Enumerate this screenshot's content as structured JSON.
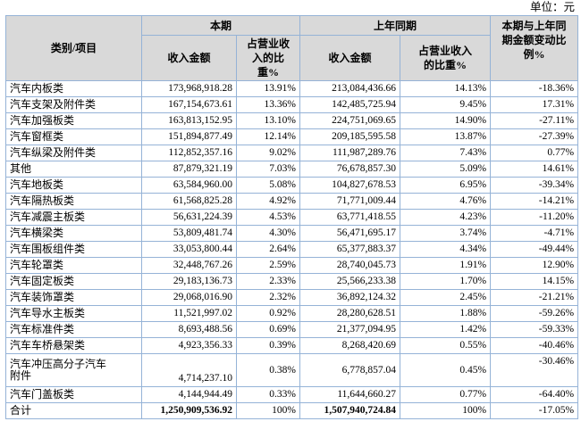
{
  "unit_label": "单位：元",
  "colors": {
    "border": "#95b3d7",
    "header_bg": "#d9d9d9"
  },
  "table": {
    "headers": {
      "category": "类别/项目",
      "current_period": "本期",
      "prior_period": "上年同期",
      "change": "本期与上年同\n期金额变动比\n例%",
      "current_revenue": "收入金额",
      "current_pct": "占营业收\n入的比\n重%",
      "prior_revenue": "收入金额",
      "prior_pct": "占营业收入\n的比重%"
    },
    "rows": [
      {
        "category": "汽车内板类",
        "cur_amount": "173,968,918.28",
        "cur_pct": "13.91%",
        "prior_amount": "213,084,436.66",
        "prior_pct": "14.13%",
        "change": "-18.36%"
      },
      {
        "category": "汽车支架及附件类",
        "cur_amount": "167,154,673.61",
        "cur_pct": "13.36%",
        "prior_amount": "142,485,725.94",
        "prior_pct": "9.45%",
        "change": "17.31%"
      },
      {
        "category": "汽车加强板类",
        "cur_amount": "163,813,152.95",
        "cur_pct": "13.10%",
        "prior_amount": "224,751,069.65",
        "prior_pct": "14.90%",
        "change": "-27.11%"
      },
      {
        "category": "汽车窗框类",
        "cur_amount": "151,894,877.49",
        "cur_pct": "12.14%",
        "prior_amount": "209,185,595.58",
        "prior_pct": "13.87%",
        "change": "-27.39%"
      },
      {
        "category": "汽车纵梁及附件类",
        "cur_amount": "112,852,357.16",
        "cur_pct": "9.02%",
        "prior_amount": "111,987,289.76",
        "prior_pct": "7.43%",
        "change": "0.77%"
      },
      {
        "category": "其他",
        "cur_amount": "87,879,321.19",
        "cur_pct": "7.03%",
        "prior_amount": "76,678,857.30",
        "prior_pct": "5.09%",
        "change": "14.61%"
      },
      {
        "category": "汽车地板类",
        "cur_amount": "63,584,960.00",
        "cur_pct": "5.08%",
        "prior_amount": "104,827,678.53",
        "prior_pct": "6.95%",
        "change": "-39.34%"
      },
      {
        "category": "汽车隔热板类",
        "cur_amount": "61,568,825.28",
        "cur_pct": "4.92%",
        "prior_amount": "71,771,009.44",
        "prior_pct": "4.76%",
        "change": "-14.21%"
      },
      {
        "category": "汽车减震主板类",
        "cur_amount": "56,631,224.39",
        "cur_pct": "4.53%",
        "prior_amount": "63,771,418.55",
        "prior_pct": "4.23%",
        "change": "-11.20%"
      },
      {
        "category": "汽车横梁类",
        "cur_amount": "53,809,481.74",
        "cur_pct": "4.30%",
        "prior_amount": "56,471,695.17",
        "prior_pct": "3.74%",
        "change": "-4.71%"
      },
      {
        "category": "汽车围板组件类",
        "cur_amount": "33,053,800.44",
        "cur_pct": "2.64%",
        "prior_amount": "65,377,883.37",
        "prior_pct": "4.34%",
        "change": "-49.44%"
      },
      {
        "category": "汽车轮罩类",
        "cur_amount": "32,448,767.26",
        "cur_pct": "2.59%",
        "prior_amount": "28,740,045.73",
        "prior_pct": "1.91%",
        "change": "12.90%"
      },
      {
        "category": "汽车固定板类",
        "cur_amount": "29,183,136.73",
        "cur_pct": "2.33%",
        "prior_amount": "25,566,233.38",
        "prior_pct": "1.70%",
        "change": "14.15%"
      },
      {
        "category": "汽车装饰罩类",
        "cur_amount": "29,068,016.90",
        "cur_pct": "2.32%",
        "prior_amount": "36,892,124.32",
        "prior_pct": "2.45%",
        "change": "-21.21%"
      },
      {
        "category": "汽车导水主板类",
        "cur_amount": "11,521,997.02",
        "cur_pct": "0.92%",
        "prior_amount": "28,280,628.51",
        "prior_pct": "1.88%",
        "change": "-59.26%"
      },
      {
        "category": "汽车标准件类",
        "cur_amount": "8,693,488.56",
        "cur_pct": "0.69%",
        "prior_amount": "21,377,094.95",
        "prior_pct": "1.42%",
        "change": "-59.33%"
      },
      {
        "category": "汽车车桥悬架类",
        "cur_amount": "4,923,356.33",
        "cur_pct": "0.39%",
        "prior_amount": "8,268,420.69",
        "prior_pct": "0.55%",
        "change": "-40.46%"
      },
      {
        "category": "汽车冲压高分子汽车\n附件",
        "cur_amount": "4,714,237.10",
        "cur_pct": "0.38%",
        "prior_amount": "6,778,857.04",
        "prior_pct": "0.45%",
        "change": "-30.46%",
        "tall": true
      },
      {
        "category": "汽车门盖板类",
        "cur_amount": "4,144,944.49",
        "cur_pct": "0.33%",
        "prior_amount": "11,644,660.27",
        "prior_pct": "0.77%",
        "change": "-64.40%"
      },
      {
        "category": "合计",
        "cur_amount": "1,250,909,536.92",
        "cur_pct": "100%",
        "prior_amount": "1,507,940,724.84",
        "prior_pct": "100%",
        "change": "-17.05%",
        "total": true
      }
    ]
  }
}
